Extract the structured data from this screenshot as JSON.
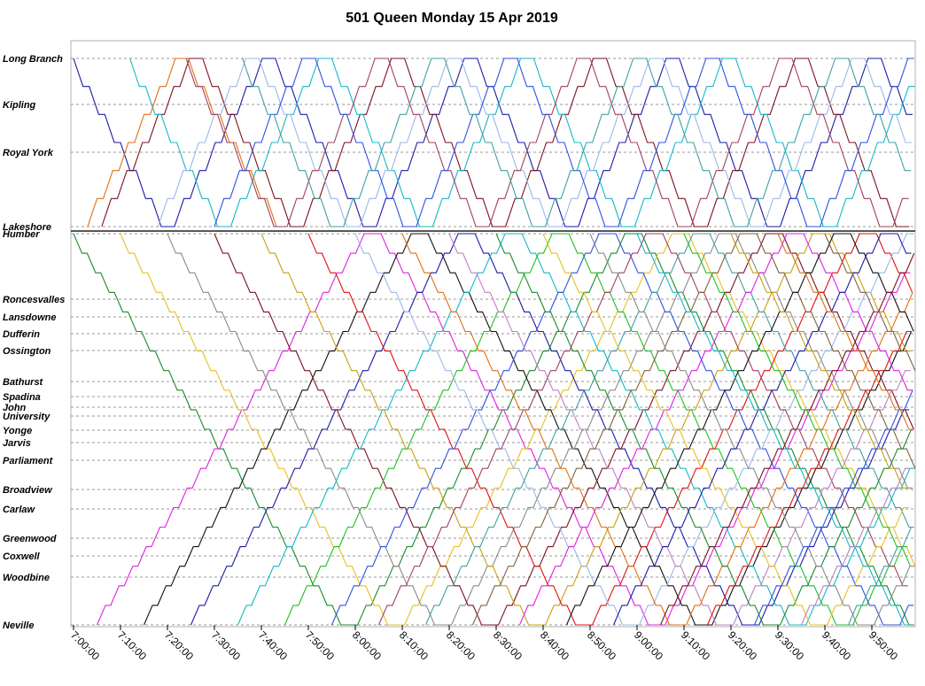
{
  "chart_data": {
    "type": "line",
    "title": "501 Queen  Monday  15 Apr 2019",
    "xlabel": "",
    "ylabel": "",
    "x_range": [
      "7:00:00",
      "9:58:00"
    ],
    "x_ticks": [
      "7:00:00",
      "7:10:00",
      "7:20:00",
      "7:30:00",
      "7:40:00",
      "7:50:00",
      "8:00:00",
      "8:10:00",
      "8:20:00",
      "8:30:00",
      "8:40:00",
      "8:50:00",
      "9:00:00",
      "9:10:00",
      "9:20:00",
      "9:30:00",
      "9:40:00",
      "9:50:00"
    ],
    "stops": [
      "Long Branch",
      "Kipling",
      "Royal York",
      "Lakeshore",
      "Humber",
      "Roncesvalles",
      "Lansdowne",
      "Dufferin",
      "Ossington",
      "Bathurst",
      "Spadina",
      "John",
      "University",
      "Yonge",
      "Jarvis",
      "Parliament",
      "Broadview",
      "Carlaw",
      "Greenwood",
      "Coxwell",
      "Woodbine",
      "Neville"
    ],
    "grid": true,
    "series_colors": [
      "#1a1aa6",
      "#7a1020",
      "#14b8c8",
      "#e07010",
      "#1a8a2a",
      "#e020e0",
      "#e8c020",
      "#101010",
      "#8a8a8a",
      "#9ab8e8",
      "#c8a010",
      "#20c020",
      "#e01010",
      "#3050e0",
      "#a04060",
      "#40a0a0",
      "#c080c0",
      "#806040"
    ],
    "series": [
      {
        "segment": "west",
        "color": "#1a1aa6",
        "start": "7:00:00",
        "trips": [
          "Long Branch",
          "Lakeshore",
          "Long Branch",
          "Lakeshore",
          "Long Branch",
          "Lakeshore",
          "Long Branch",
          "Lakeshore",
          "Long Branch",
          "Lakeshore"
        ]
      },
      {
        "segment": "west",
        "color": "#7a1020",
        "start": "7:06:00",
        "trips": [
          "Lakeshore",
          "Long Branch",
          "Lakeshore",
          "Long Branch",
          "Lakeshore",
          "Long Branch",
          "Lakeshore",
          "Long Branch",
          "Lakeshore",
          "Long Branch"
        ]
      },
      {
        "segment": "west",
        "color": "#14b8c8",
        "start": "7:12:00",
        "trips": [
          "Long Branch",
          "Lakeshore",
          "Long Branch",
          "Lakeshore",
          "Long Branch",
          "Lakeshore",
          "Long Branch",
          "Lakeshore",
          "Long Branch",
          "Lakeshore"
        ]
      },
      {
        "segment": "west",
        "color": "#e07010",
        "start": "7:03:00",
        "trips": [
          "Lakeshore",
          "Long Branch",
          "Lakeshore"
        ]
      },
      {
        "segment": "west",
        "color": "#9ab8e8",
        "start": "7:18:00",
        "trips": [
          "Lakeshore",
          "Long Branch",
          "Lakeshore",
          "Long Branch",
          "Lakeshore",
          "Long Branch",
          "Lakeshore",
          "Long Branch",
          "Lakeshore",
          "Long Branch"
        ]
      },
      {
        "segment": "west",
        "color": "#a04060",
        "start": "7:24:00",
        "trips": [
          "Long Branch",
          "Lakeshore",
          "Long Branch",
          "Lakeshore",
          "Long Branch",
          "Lakeshore",
          "Long Branch",
          "Lakeshore",
          "Long Branch"
        ]
      },
      {
        "segment": "west",
        "color": "#3050e0",
        "start": "7:30:00",
        "trips": [
          "Lakeshore",
          "Long Branch",
          "Lakeshore",
          "Long Branch",
          "Lakeshore",
          "Long Branch",
          "Lakeshore",
          "Long Branch",
          "Lakeshore"
        ]
      },
      {
        "segment": "west",
        "color": "#40a0a0",
        "start": "7:36:00",
        "trips": [
          "Long Branch",
          "Lakeshore",
          "Long Branch",
          "Lakeshore",
          "Long Branch",
          "Lakeshore",
          "Long Branch",
          "Lakeshore"
        ]
      },
      {
        "segment": "main",
        "color": "#1a8a2a",
        "start": "7:00:00",
        "trips": [
          "Humber",
          "Neville",
          "Humber",
          "Neville",
          "Humber"
        ]
      },
      {
        "segment": "main",
        "color": "#e020e0",
        "start": "7:05:00",
        "trips": [
          "Neville",
          "Humber",
          "Neville",
          "Humber",
          "Neville"
        ]
      },
      {
        "segment": "main",
        "color": "#e8c020",
        "start": "7:10:00",
        "trips": [
          "Humber",
          "Neville",
          "Humber",
          "Neville",
          "Humber"
        ]
      },
      {
        "segment": "main",
        "color": "#101010",
        "start": "7:15:00",
        "trips": [
          "Neville",
          "Humber",
          "Neville",
          "Humber",
          "Neville"
        ]
      },
      {
        "segment": "main",
        "color": "#8a8a8a",
        "start": "7:20:00",
        "trips": [
          "Humber",
          "Neville",
          "Humber",
          "Neville",
          "Humber"
        ]
      },
      {
        "segment": "main",
        "color": "#1a1aa6",
        "start": "7:25:00",
        "trips": [
          "Neville",
          "Humber",
          "Neville",
          "Humber"
        ]
      },
      {
        "segment": "main",
        "color": "#7a1020",
        "start": "7:30:00",
        "trips": [
          "Humber",
          "Neville",
          "Humber",
          "Neville"
        ]
      },
      {
        "segment": "main",
        "color": "#14b8c8",
        "start": "7:35:00",
        "trips": [
          "Neville",
          "Humber",
          "Neville",
          "Humber"
        ]
      },
      {
        "segment": "main",
        "color": "#c8a010",
        "start": "7:40:00",
        "trips": [
          "Humber",
          "Neville",
          "Humber",
          "Neville"
        ]
      },
      {
        "segment": "main",
        "color": "#20c020",
        "start": "7:45:00",
        "trips": [
          "Neville",
          "Humber",
          "Neville",
          "Humber"
        ]
      },
      {
        "segment": "main",
        "color": "#e01010",
        "start": "7:50:00",
        "trips": [
          "Humber",
          "Neville",
          "Humber",
          "Neville"
        ]
      },
      {
        "segment": "main",
        "color": "#3050e0",
        "start": "7:55:00",
        "trips": [
          "Neville",
          "Humber",
          "Neville",
          "Humber"
        ]
      },
      {
        "segment": "main",
        "color": "#9ab8e8",
        "start": "8:00:00",
        "trips": [
          "Humber",
          "Neville",
          "Humber",
          "Neville"
        ]
      },
      {
        "segment": "main",
        "color": "#a04060",
        "start": "8:05:00",
        "trips": [
          "Neville",
          "Humber",
          "Neville"
        ]
      },
      {
        "segment": "main",
        "color": "#e07010",
        "start": "8:10:00",
        "trips": [
          "Humber",
          "Neville",
          "Humber"
        ]
      },
      {
        "segment": "main",
        "color": "#40a0a0",
        "start": "8:15:00",
        "trips": [
          "Neville",
          "Humber",
          "Neville"
        ]
      },
      {
        "segment": "main",
        "color": "#c080c0",
        "start": "8:20:00",
        "trips": [
          "Humber",
          "Neville",
          "Humber"
        ]
      },
      {
        "segment": "main",
        "color": "#806040",
        "start": "8:25:00",
        "trips": [
          "Neville",
          "Humber",
          "Neville"
        ]
      },
      {
        "segment": "main",
        "color": "#1a8a2a",
        "start": "8:30:00",
        "trips": [
          "Humber",
          "Neville",
          "Humber"
        ]
      },
      {
        "segment": "main",
        "color": "#e020e0",
        "start": "8:35:00",
        "trips": [
          "Neville",
          "Humber",
          "Neville"
        ]
      },
      {
        "segment": "main",
        "color": "#e8c020",
        "start": "8:40:00",
        "trips": [
          "Humber",
          "Neville",
          "Humber"
        ]
      },
      {
        "segment": "main",
        "color": "#101010",
        "start": "8:45:00",
        "trips": [
          "Neville",
          "Humber",
          "Neville"
        ]
      },
      {
        "segment": "main",
        "color": "#8a8a8a",
        "start": "8:50:00",
        "trips": [
          "Humber",
          "Neville",
          "Humber"
        ]
      },
      {
        "segment": "main",
        "color": "#1a1aa6",
        "start": "8:55:00",
        "trips": [
          "Neville",
          "Humber",
          "Neville"
        ]
      },
      {
        "segment": "main",
        "color": "#14b8c8",
        "start": "9:00:00",
        "trips": [
          "Humber",
          "Neville"
        ]
      },
      {
        "segment": "main",
        "color": "#7a1020",
        "start": "9:05:00",
        "trips": [
          "Neville",
          "Humber"
        ]
      },
      {
        "segment": "main",
        "color": "#20c020",
        "start": "9:10:00",
        "trips": [
          "Humber",
          "Neville"
        ]
      },
      {
        "segment": "main",
        "color": "#e01010",
        "start": "9:15:00",
        "trips": [
          "Neville",
          "Humber"
        ]
      },
      {
        "segment": "main",
        "color": "#c8a010",
        "start": "9:20:00",
        "trips": [
          "Humber",
          "Neville"
        ]
      },
      {
        "segment": "main",
        "color": "#3050e0",
        "start": "9:25:00",
        "trips": [
          "Neville",
          "Humber"
        ]
      },
      {
        "segment": "main",
        "color": "#e07010",
        "start": "9:30:00",
        "trips": [
          "Humber",
          "Neville"
        ]
      },
      {
        "segment": "main",
        "color": "#c080c0",
        "start": "9:35:00",
        "trips": [
          "Neville",
          "Humber"
        ]
      },
      {
        "segment": "main",
        "color": "#806040",
        "start": "9:40:00",
        "trips": [
          "Humber",
          "Neville"
        ]
      },
      {
        "segment": "main",
        "color": "#40a0a0",
        "start": "9:45:00",
        "trips": [
          "Neville",
          "Humber"
        ]
      }
    ]
  }
}
